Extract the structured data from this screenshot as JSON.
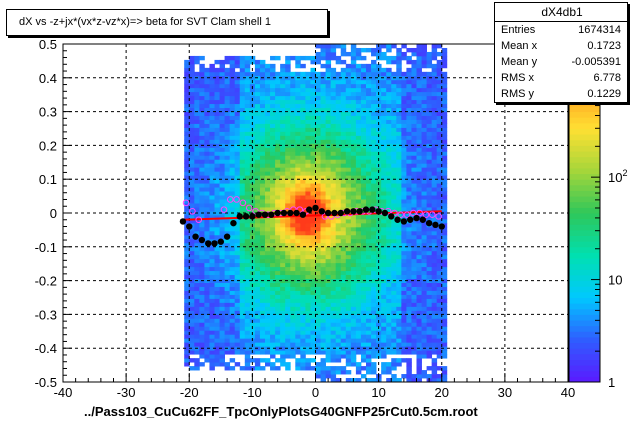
{
  "chart_data": {
    "type": "heatmap",
    "title": "dX vs  -z+jx*(vx*z-vz*x)=> beta  for SVT Clam shell 1",
    "xlabel": "../Pass103_CuCu62FF_TpcOnlyPlotsG40GNFP25rCut0.5cm.root",
    "ylabel": "",
    "xlim": [
      -40,
      40
    ],
    "ylim": [
      -0.5,
      0.5
    ],
    "x_ticks": [
      "-40",
      "-30",
      "-20",
      "-10",
      "0",
      "10",
      "20",
      "30",
      "40"
    ],
    "y_ticks": [
      "-0.5",
      "-0.4",
      "-0.3",
      "-0.2",
      "-0.1",
      "0",
      "0.1",
      "0.2",
      "0.3",
      "0.4",
      "0.5"
    ],
    "z_scale": "log",
    "z_ticks": [
      "1",
      "10",
      "10^2",
      "10^3"
    ],
    "grid": true,
    "stats": {
      "name": "dX4db1",
      "entries": {
        "label": "Entries",
        "value": "1674314"
      },
      "mean_x": {
        "label": "Mean x",
        "value": "0.1723"
      },
      "mean_y": {
        "label": "Mean y",
        "value": "-0.005391"
      },
      "rms_x": {
        "label": "RMS x",
        "value": "6.778"
      },
      "rms_y": {
        "label": "RMS y",
        "value": "0.1229"
      }
    },
    "profile_black": [
      {
        "x": -21,
        "y": -0.025
      },
      {
        "x": -20,
        "y": -0.04
      },
      {
        "x": -19,
        "y": -0.07
      },
      {
        "x": -18,
        "y": -0.08
      },
      {
        "x": -17,
        "y": -0.09
      },
      {
        "x": -16,
        "y": -0.09
      },
      {
        "x": -15,
        "y": -0.085
      },
      {
        "x": -14,
        "y": -0.07
      },
      {
        "x": -13,
        "y": -0.03
      },
      {
        "x": -12,
        "y": -0.01
      },
      {
        "x": -11,
        "y": -0.01
      },
      {
        "x": -10,
        "y": -0.01
      },
      {
        "x": -9,
        "y": -0.005
      },
      {
        "x": -8,
        "y": -0.005
      },
      {
        "x": -7,
        "y": -0.005
      },
      {
        "x": -6,
        "y": 0
      },
      {
        "x": -5,
        "y": 0
      },
      {
        "x": -4,
        "y": 0
      },
      {
        "x": -3,
        "y": 0
      },
      {
        "x": -2,
        "y": -0.005
      },
      {
        "x": -1,
        "y": 0.01
      },
      {
        "x": 0,
        "y": 0.015
      },
      {
        "x": 1,
        "y": 0.005
      },
      {
        "x": 2,
        "y": 0
      },
      {
        "x": 3,
        "y": 0
      },
      {
        "x": 4,
        "y": 0
      },
      {
        "x": 5,
        "y": 0.005
      },
      {
        "x": 6,
        "y": 0.005
      },
      {
        "x": 7,
        "y": 0.005
      },
      {
        "x": 8,
        "y": 0.01
      },
      {
        "x": 9,
        "y": 0.01
      },
      {
        "x": 10,
        "y": 0.005
      },
      {
        "x": 11,
        "y": 0
      },
      {
        "x": 12,
        "y": -0.01
      },
      {
        "x": 13,
        "y": -0.02
      },
      {
        "x": 14,
        "y": -0.025
      },
      {
        "x": 15,
        "y": -0.02
      },
      {
        "x": 16,
        "y": -0.015
      },
      {
        "x": 17,
        "y": -0.02
      },
      {
        "x": 18,
        "y": -0.03
      },
      {
        "x": 19,
        "y": -0.035
      },
      {
        "x": 20,
        "y": -0.04
      }
    ],
    "profile_magenta": [
      {
        "x": -20.5,
        "y": 0.03
      },
      {
        "x": -19.5,
        "y": 0.005
      },
      {
        "x": -18.5,
        "y": -0.02
      },
      {
        "x": -14.5,
        "y": 0.01
      },
      {
        "x": -13.5,
        "y": 0.04
      },
      {
        "x": -12.5,
        "y": 0.04
      },
      {
        "x": -11.5,
        "y": 0.03
      },
      {
        "x": -10.5,
        "y": 0.015
      },
      {
        "x": -9.5,
        "y": 0.005
      },
      {
        "x": -8.5,
        "y": 0
      },
      {
        "x": -7.5,
        "y": -0.005
      },
      {
        "x": -6.5,
        "y": 0
      },
      {
        "x": -5.5,
        "y": 0
      },
      {
        "x": -4.5,
        "y": 0.005
      },
      {
        "x": -3.5,
        "y": 0.01
      },
      {
        "x": -2.5,
        "y": 0.01
      },
      {
        "x": -1.5,
        "y": 0.005
      },
      {
        "x": 1.5,
        "y": -0.01
      },
      {
        "x": 2.5,
        "y": -0.01
      },
      {
        "x": 3.5,
        "y": -0.005
      },
      {
        "x": 4.5,
        "y": 0
      },
      {
        "x": 5.5,
        "y": 0
      },
      {
        "x": 6.5,
        "y": 0.005
      },
      {
        "x": 7.5,
        "y": 0.005
      },
      {
        "x": 8.5,
        "y": 0.005
      },
      {
        "x": 9.5,
        "y": 0.01
      },
      {
        "x": 10.5,
        "y": 0.005
      },
      {
        "x": 11.5,
        "y": 0.005
      },
      {
        "x": 12.5,
        "y": 0
      },
      {
        "x": 13.5,
        "y": -0.005
      },
      {
        "x": 14.5,
        "y": -0.005
      },
      {
        "x": 15.5,
        "y": 0
      },
      {
        "x": 16.5,
        "y": 0
      },
      {
        "x": 17.5,
        "y": -0.005
      },
      {
        "x": 18.5,
        "y": -0.005
      },
      {
        "x": 19.5,
        "y": -0.01
      }
    ],
    "fit_line": {
      "x": [
        -21,
        20
      ],
      "y": [
        -0.02,
        0.005
      ]
    }
  },
  "colors": {
    "frame": "#000000",
    "grid": "#000000",
    "profile_black": "#000000",
    "profile_magenta": "#ff44ff",
    "fit_line": "#ff0000",
    "palette": [
      "#ffffff",
      "#5b1aff",
      "#2f5dff",
      "#00c8ff",
      "#00e0b0",
      "#2ec75a",
      "#a5d63a",
      "#ffe033",
      "#ff9a1f",
      "#ff3a1a"
    ]
  }
}
